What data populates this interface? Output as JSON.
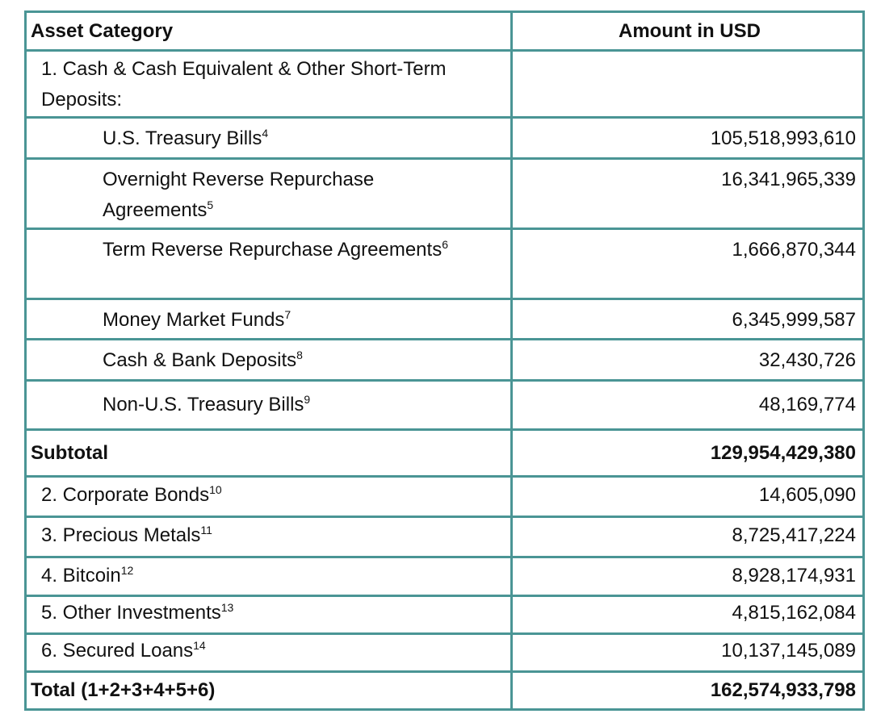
{
  "table": {
    "headers": [
      "Asset Category",
      "Amount in USD"
    ],
    "section1_label": "1.  Cash & Cash Equivalent & Other Short-Term Deposits:",
    "cash_items": [
      {
        "label": "U.S. Treasury Bills",
        "note": "4",
        "amount": "105,518,993,610"
      },
      {
        "label": "Overnight Reverse Repurchase Agreements",
        "note": "5",
        "amount": "16,341,965,339"
      },
      {
        "label": "Term Reverse Repurchase Agreements",
        "note": "6",
        "amount": "1,666,870,344"
      },
      {
        "label": "Money Market Funds",
        "note": "7",
        "amount": "6,345,999,587"
      },
      {
        "label": "Cash & Bank Deposits",
        "note": "8",
        "amount": "32,430,726"
      },
      {
        "label": "Non-U.S. Treasury Bills",
        "note": "9",
        "amount": "48,169,774"
      }
    ],
    "subtotal": {
      "label": "Subtotal",
      "amount": "129,954,429,380"
    },
    "other_items": [
      {
        "label": "2.  Corporate Bonds",
        "note": "10",
        "amount": "14,605,090"
      },
      {
        "label": "3.  Precious Metals",
        "note": "11",
        "amount": "8,725,417,224"
      },
      {
        "label": "4.  Bitcoin",
        "note": "12",
        "amount": "8,928,174,931"
      },
      {
        "label": "5.  Other Investments",
        "note": "13",
        "amount": "4,815,162,084"
      },
      {
        "label": "6.  Secured Loans",
        "note": "14",
        "amount": "10,137,145,089"
      }
    ],
    "total": {
      "label": "Total (1+2+3+4+5+6)",
      "amount": "162,574,933,798"
    },
    "border_color": "#4a9595"
  }
}
